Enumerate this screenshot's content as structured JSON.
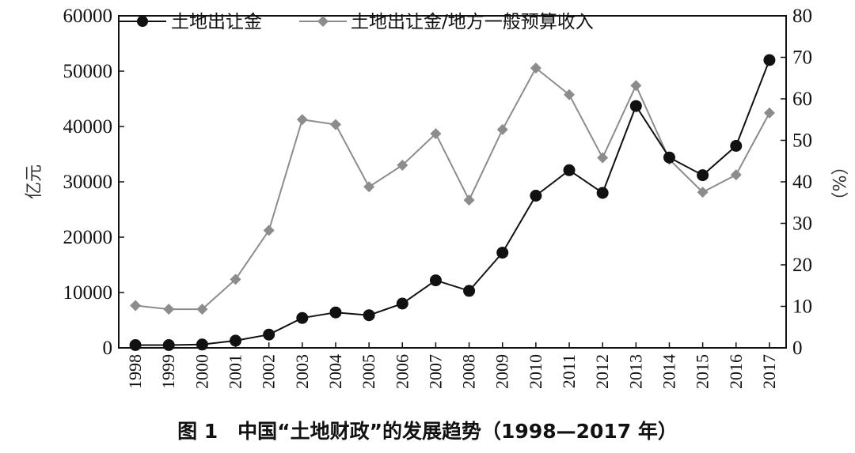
{
  "caption": "图 1　中国“土地财政”的发展趋势（1998—2017 年）",
  "chart_data": {
    "type": "line",
    "x": [
      "1998",
      "1999",
      "2000",
      "2001",
      "2002",
      "2003",
      "2004",
      "2005",
      "2006",
      "2007",
      "2008",
      "2009",
      "2010",
      "2011",
      "2012",
      "2013",
      "2014",
      "2015",
      "2016",
      "2017"
    ],
    "left_axis": {
      "label": "亿元",
      "ylim": [
        0,
        60000
      ],
      "ticks": [
        "0",
        "10000",
        "20000",
        "30000",
        "40000",
        "50000",
        "60000"
      ]
    },
    "right_axis": {
      "label": "（%）",
      "ylim": [
        0,
        80
      ],
      "ticks": [
        "0",
        "10",
        "20",
        "30",
        "40",
        "50",
        "60",
        "70",
        "80"
      ]
    },
    "series": [
      {
        "name": "土地出让金",
        "axis": "left",
        "color": "#111111",
        "marker": "circle",
        "values": [
          500,
          500,
          600,
          1300,
          2400,
          5400,
          6400,
          5900,
          8000,
          12200,
          10300,
          17200,
          27500,
          32100,
          28000,
          43700,
          34400,
          31200,
          36500,
          52000
        ]
      },
      {
        "name": "土地出让金/地方一般预算收入",
        "axis": "right",
        "color": "#8c8c8c",
        "marker": "diamond",
        "values": [
          10.2,
          9.3,
          9.3,
          16.5,
          28.3,
          55.0,
          53.8,
          38.8,
          44.0,
          51.6,
          35.6,
          52.6,
          67.4,
          61.0,
          45.8,
          63.2,
          45.4,
          37.5,
          41.7,
          56.6
        ]
      }
    ],
    "grid": false,
    "legend": "top-left"
  }
}
